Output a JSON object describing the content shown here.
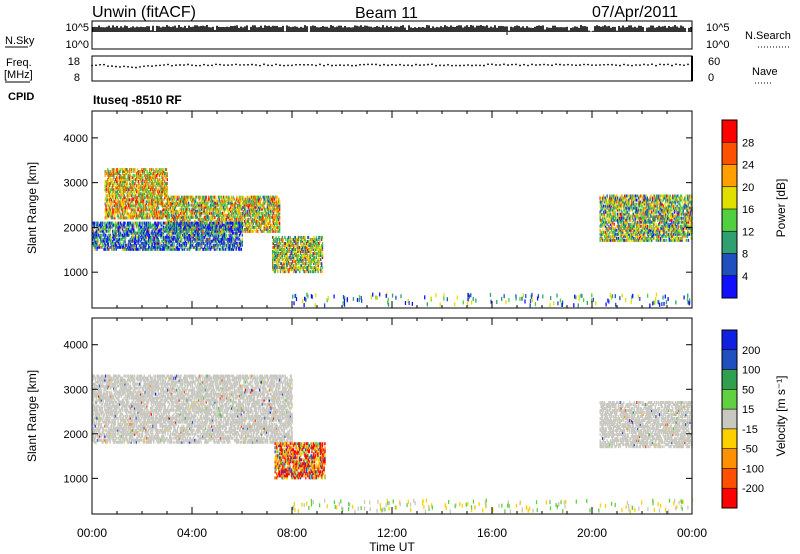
{
  "header": {
    "station": "Unwin (fitACF)",
    "beam": "Beam 11",
    "date": "07/Apr/2011"
  },
  "top_panel_1": {
    "left_label": "N.Sky",
    "left_ticks": [
      "10^5",
      "10^0"
    ],
    "right_ticks": [
      "10^5",
      "10^0"
    ],
    "right_label": "N.Search"
  },
  "top_panel_2": {
    "left_label_line1": "Freq.",
    "left_label_line2": "[MHz]",
    "left_ticks": [
      "18",
      "8"
    ],
    "right_ticks": [
      "60",
      "0"
    ],
    "right_label": "Nave"
  },
  "cpid": {
    "label": "CPID",
    "value": "Ituseq -8510 RF"
  },
  "time_axis": {
    "ticks": [
      "00:00",
      "04:00",
      "08:00",
      "12:00",
      "16:00",
      "20:00",
      "00:00"
    ],
    "label": "Time UT"
  },
  "chart_data": [
    {
      "type": "heatmap",
      "name": "power-panel",
      "ylabel": "Slant Range [km]",
      "yticks": [
        "1000",
        "2000",
        "3000",
        "4000"
      ],
      "ylim": [
        200,
        4600
      ],
      "xlim_hours": [
        0,
        24
      ],
      "colorbar": {
        "label": "Power [dB]",
        "ticks": [
          "4",
          "8",
          "12",
          "16",
          "20",
          "24",
          "28"
        ],
        "range": [
          0,
          32
        ],
        "colors": [
          "#1010ff",
          "#2050c0",
          "#30a070",
          "#50d040",
          "#e0e000",
          "#ffa000",
          "#ff5000",
          "#ff0000"
        ]
      },
      "regions": [
        {
          "t": [
            0.5,
            3.0
          ],
          "range": [
            2200,
            3300
          ],
          "level": 0.55
        },
        {
          "t": [
            3.0,
            7.5
          ],
          "range": [
            1900,
            2700
          ],
          "level": 0.5
        },
        {
          "t": [
            7.2,
            9.2
          ],
          "range": [
            1000,
            1800
          ],
          "level": 0.45
        },
        {
          "t": [
            0.0,
            6.0
          ],
          "range": [
            1500,
            2100
          ],
          "level": 0.2
        },
        {
          "t": [
            20.3,
            24.0
          ],
          "range": [
            1700,
            2700
          ],
          "level": 0.4
        }
      ]
    },
    {
      "type": "heatmap",
      "name": "velocity-panel",
      "ylabel": "Slant Range [km]",
      "yticks": [
        "1000",
        "2000",
        "3000",
        "4000"
      ],
      "ylim": [
        200,
        4600
      ],
      "xlim_hours": [
        0,
        24
      ],
      "colorbar": {
        "label": "Velocity [m s⁻¹]",
        "ticks": [
          "200",
          "100",
          "50",
          "15",
          "-15",
          "-50",
          "-100",
          "-200"
        ],
        "colors": [
          "#1020e0",
          "#2050c0",
          "#30a050",
          "#60d040",
          "#c8c8c0",
          "#ffd000",
          "#ff9000",
          "#ff5000",
          "#ff0000"
        ]
      },
      "regions": [
        {
          "t": [
            0.0,
            8.0
          ],
          "range": [
            1800,
            3300
          ],
          "class": "gray"
        },
        {
          "t": [
            7.3,
            9.3
          ],
          "range": [
            1000,
            1800
          ],
          "class": "mixed"
        },
        {
          "t": [
            20.3,
            24.0
          ],
          "range": [
            1700,
            2700
          ],
          "class": "gray"
        }
      ]
    }
  ]
}
